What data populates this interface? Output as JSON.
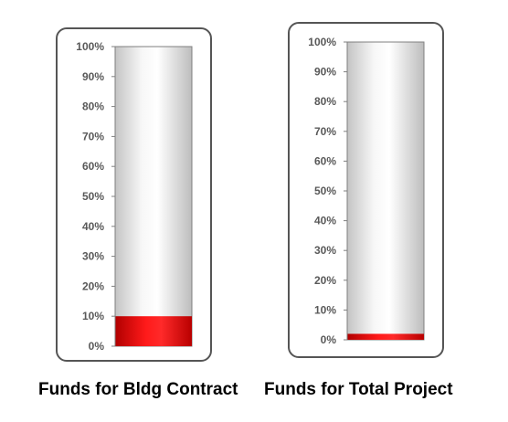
{
  "chart_data": [
    {
      "type": "bar",
      "title": "",
      "caption": "Funds for Bldg Contract",
      "ylim": [
        0,
        100
      ],
      "y_ticks": [
        "0%",
        "10%",
        "20%",
        "30%",
        "40%",
        "50%",
        "60%",
        "70%",
        "80%",
        "90%",
        "100%"
      ],
      "categories": [
        ""
      ],
      "values": [
        10
      ],
      "grid": false,
      "colors": {
        "fill": "#e00000",
        "empty": "#e2e2e2",
        "frame": "#555555",
        "tick": "#595959"
      }
    },
    {
      "type": "bar",
      "title": "",
      "caption": "Funds for Total Project",
      "ylim": [
        0,
        100
      ],
      "y_ticks": [
        "0%",
        "10%",
        "20%",
        "30%",
        "40%",
        "50%",
        "60%",
        "70%",
        "80%",
        "90%",
        "100%"
      ],
      "categories": [
        ""
      ],
      "values": [
        2
      ],
      "grid": false,
      "colors": {
        "fill": "#e00000",
        "empty": "#e2e2e2",
        "frame": "#555555",
        "tick": "#595959"
      }
    }
  ]
}
